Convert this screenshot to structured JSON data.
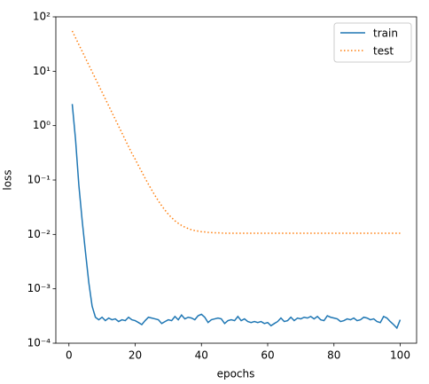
{
  "chart_data": {
    "type": "line",
    "xlabel": "epochs",
    "ylabel": "loss",
    "yscale": "log",
    "legend": "upper right",
    "xlim": [
      -3.95,
      104.95
    ],
    "xticks": [
      0,
      20,
      40,
      60,
      80,
      100
    ],
    "ylim": [
      0.0001,
      100
    ],
    "yticks": [
      {
        "value": 0.0001,
        "label": "10⁻⁴"
      },
      {
        "value": 0.001,
        "label": "10⁻³"
      },
      {
        "value": 0.01,
        "label": "10⁻²"
      },
      {
        "value": 0.1,
        "label": "10⁻¹"
      },
      {
        "value": 1,
        "label": "10⁰"
      },
      {
        "value": 10,
        "label": "10¹"
      },
      {
        "value": 100,
        "label": "10²"
      }
    ],
    "x": [
      1,
      2,
      3,
      4,
      5,
      6,
      7,
      8,
      9,
      10,
      11,
      12,
      13,
      14,
      15,
      16,
      17,
      18,
      19,
      20,
      21,
      22,
      23,
      24,
      25,
      26,
      27,
      28,
      29,
      30,
      31,
      32,
      33,
      34,
      35,
      36,
      37,
      38,
      39,
      40,
      41,
      42,
      43,
      44,
      45,
      46,
      47,
      48,
      49,
      50,
      51,
      52,
      53,
      54,
      55,
      56,
      57,
      58,
      59,
      60,
      61,
      62,
      63,
      64,
      65,
      66,
      67,
      68,
      69,
      70,
      71,
      72,
      73,
      74,
      75,
      76,
      77,
      78,
      79,
      80,
      81,
      82,
      83,
      84,
      85,
      86,
      87,
      88,
      89,
      90,
      91,
      92,
      93,
      94,
      95,
      96,
      97,
      98,
      99,
      100
    ],
    "series": [
      {
        "name": "train",
        "color": "#1f77b4",
        "linestyle": "solid",
        "values": [
          2.5,
          0.55,
          0.08,
          0.018,
          0.0047,
          0.0013,
          0.00048,
          0.0003,
          0.00027,
          0.0003,
          0.00026,
          0.00029,
          0.00027,
          0.00028,
          0.00025,
          0.00027,
          0.00026,
          0.0003,
          0.00027,
          0.00026,
          0.00024,
          0.00022,
          0.00026,
          0.0003,
          0.00029,
          0.00028,
          0.00027,
          0.00023,
          0.00025,
          0.00027,
          0.00026,
          0.00031,
          0.00027,
          0.00033,
          0.00028,
          0.0003,
          0.00029,
          0.00027,
          0.00032,
          0.00034,
          0.0003,
          0.00024,
          0.00027,
          0.00028,
          0.00029,
          0.00028,
          0.00023,
          0.00026,
          0.00027,
          0.00026,
          0.00031,
          0.00026,
          0.00028,
          0.00025,
          0.00024,
          0.00025,
          0.00024,
          0.00025,
          0.00023,
          0.00024,
          0.00021,
          0.00023,
          0.00025,
          0.00029,
          0.00025,
          0.00026,
          0.0003,
          0.00026,
          0.00029,
          0.00028,
          0.0003,
          0.00029,
          0.00031,
          0.00028,
          0.00031,
          0.00027,
          0.00026,
          0.00032,
          0.0003,
          0.00029,
          0.00028,
          0.00025,
          0.00026,
          0.00028,
          0.00027,
          0.00029,
          0.00026,
          0.00027,
          0.0003,
          0.00029,
          0.00027,
          0.00028,
          0.00025,
          0.00024,
          0.00031,
          0.00029,
          0.00025,
          0.00022,
          0.00019,
          0.00027
        ]
      },
      {
        "name": "test",
        "color": "#ff7f0e",
        "linestyle": "dotted",
        "values": [
          55.0,
          41.2,
          30.9,
          23.2,
          17.4,
          13.0,
          9.77,
          7.33,
          5.5,
          4.12,
          3.09,
          2.32,
          1.74,
          1.3,
          0.977,
          0.733,
          0.55,
          0.412,
          0.309,
          0.242,
          0.184,
          0.141,
          0.108,
          0.0838,
          0.0655,
          0.0517,
          0.0414,
          0.0337,
          0.0279,
          0.0235,
          0.0203,
          0.0178,
          0.016,
          0.0146,
          0.0136,
          0.0128,
          0.0122,
          0.0118,
          0.0115,
          0.0112,
          0.0111,
          0.0109,
          0.0108,
          0.0107,
          0.0107,
          0.0106,
          0.0105,
          0.0105,
          0.0105,
          0.0105,
          0.0105,
          0.0105,
          0.0105,
          0.0105,
          0.0105,
          0.0105,
          0.0105,
          0.0105,
          0.0105,
          0.0105,
          0.0105,
          0.0105,
          0.0105,
          0.0105,
          0.0105,
          0.0105,
          0.0105,
          0.0105,
          0.0105,
          0.0105,
          0.0105,
          0.0105,
          0.0105,
          0.0105,
          0.0105,
          0.0105,
          0.0105,
          0.0105,
          0.0105,
          0.0105,
          0.0105,
          0.0105,
          0.0105,
          0.0105,
          0.0105,
          0.0105,
          0.0105,
          0.0105,
          0.0105,
          0.0105,
          0.0105,
          0.0105,
          0.0105,
          0.0105,
          0.0105,
          0.0105,
          0.0105,
          0.0105,
          0.0105,
          0.0105
        ]
      }
    ]
  }
}
